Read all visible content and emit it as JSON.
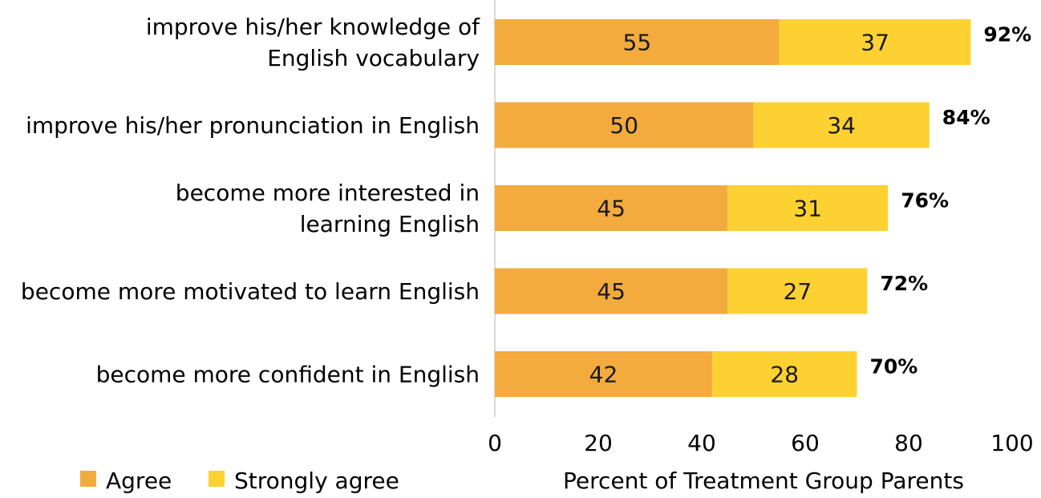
{
  "chart_data": {
    "type": "bar",
    "orientation": "horizontal",
    "stacked": true,
    "categories": [
      [
        "improve his/her knowledge of",
        "English vocabulary"
      ],
      [
        "improve his/her pronunciation in English"
      ],
      [
        "become more interested in",
        "learning English"
      ],
      [
        "become more motivated to learn English"
      ],
      [
        "become more confident in English"
      ]
    ],
    "series": [
      {
        "name": "Agree",
        "color": "#F2AB3C",
        "values": [
          55,
          50,
          45,
          45,
          42
        ]
      },
      {
        "name": "Strongly agree",
        "color": "#FDD132",
        "values": [
          37,
          34,
          31,
          27,
          28
        ]
      }
    ],
    "totals": [
      "92%",
      "84%",
      "76%",
      "72%",
      "70%"
    ],
    "xlabel": "Percent of Treatment Group Parents",
    "xlim": [
      0,
      100
    ],
    "xticks": [
      0,
      20,
      40,
      60,
      80,
      100
    ],
    "grid": false,
    "legend_position": "bottom-left"
  }
}
